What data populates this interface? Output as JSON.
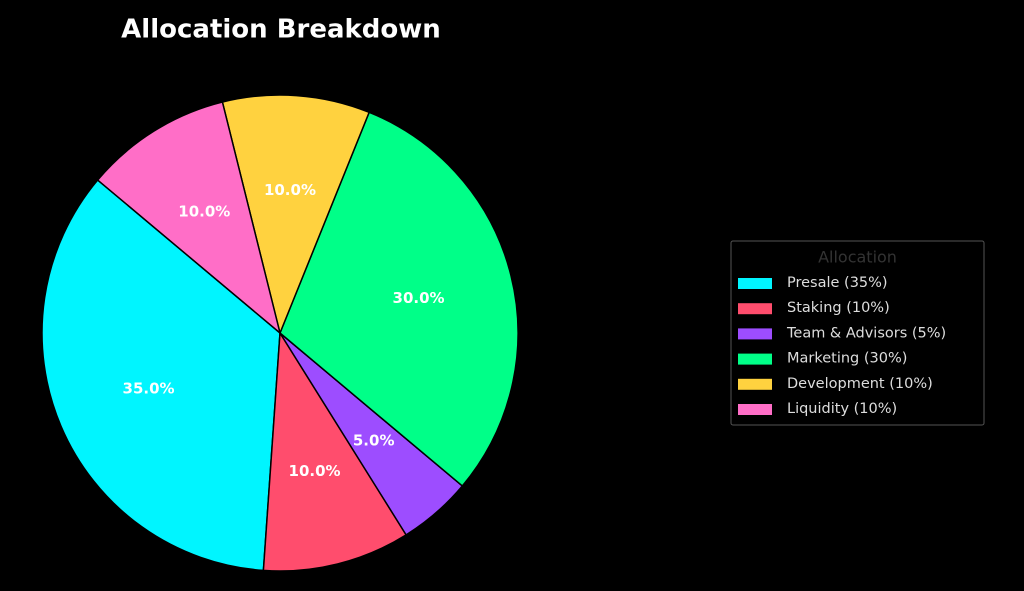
{
  "chart_data": {
    "type": "pie",
    "title": "Allocation Breakdown",
    "categories": [
      "Presale (35%)",
      "Staking (10%)",
      "Team & Advisors (5%)",
      "Marketing (30%)",
      "Development (10%)",
      "Liquidity (10%)"
    ],
    "values": [
      35,
      10,
      5,
      30,
      10,
      10
    ],
    "value_labels": [
      "35.0%",
      "10.0%",
      "5.0%",
      "30.0%",
      "10.0%",
      "10.0%"
    ],
    "colors": [
      "#00f5ff",
      "#ff4d6d",
      "#9d4dff",
      "#00ff88",
      "#ffd23f",
      "#ff6ec7"
    ],
    "legend_title": "Allocation",
    "legend": "right"
  }
}
